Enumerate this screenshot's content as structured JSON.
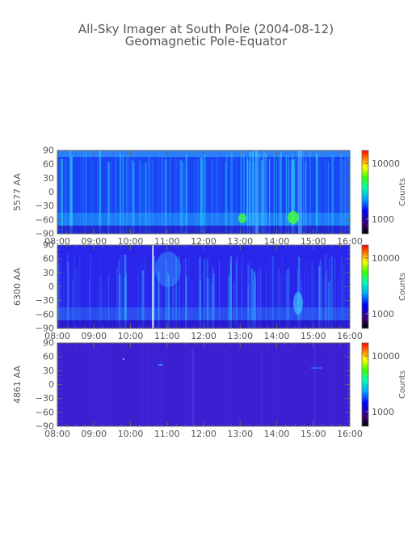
{
  "chart_data": {
    "type": "heatmap",
    "title": "All-Sky Imager at South Pole (2004-08-12)",
    "subtitle": "Geomagnetic Pole-Equator",
    "x_ticks": [
      "08:00",
      "09:00",
      "10:00",
      "11:00",
      "12:00",
      "13:00",
      "14:00",
      "15:00",
      "16:00"
    ],
    "xlim": [
      "08:00",
      "16:00"
    ],
    "y_ticks": [
      90,
      60,
      30,
      0,
      -30,
      -60,
      -90
    ],
    "ylim": [
      -90,
      90
    ],
    "colorbar": {
      "label": "Counts",
      "scale": "log",
      "ticks": [
        "10000",
        "1000"
      ]
    },
    "panels": [
      {
        "ylabel": "5577 AA"
      },
      {
        "ylabel": "6300 AA"
      },
      {
        "ylabel": "4861 AA"
      }
    ]
  }
}
